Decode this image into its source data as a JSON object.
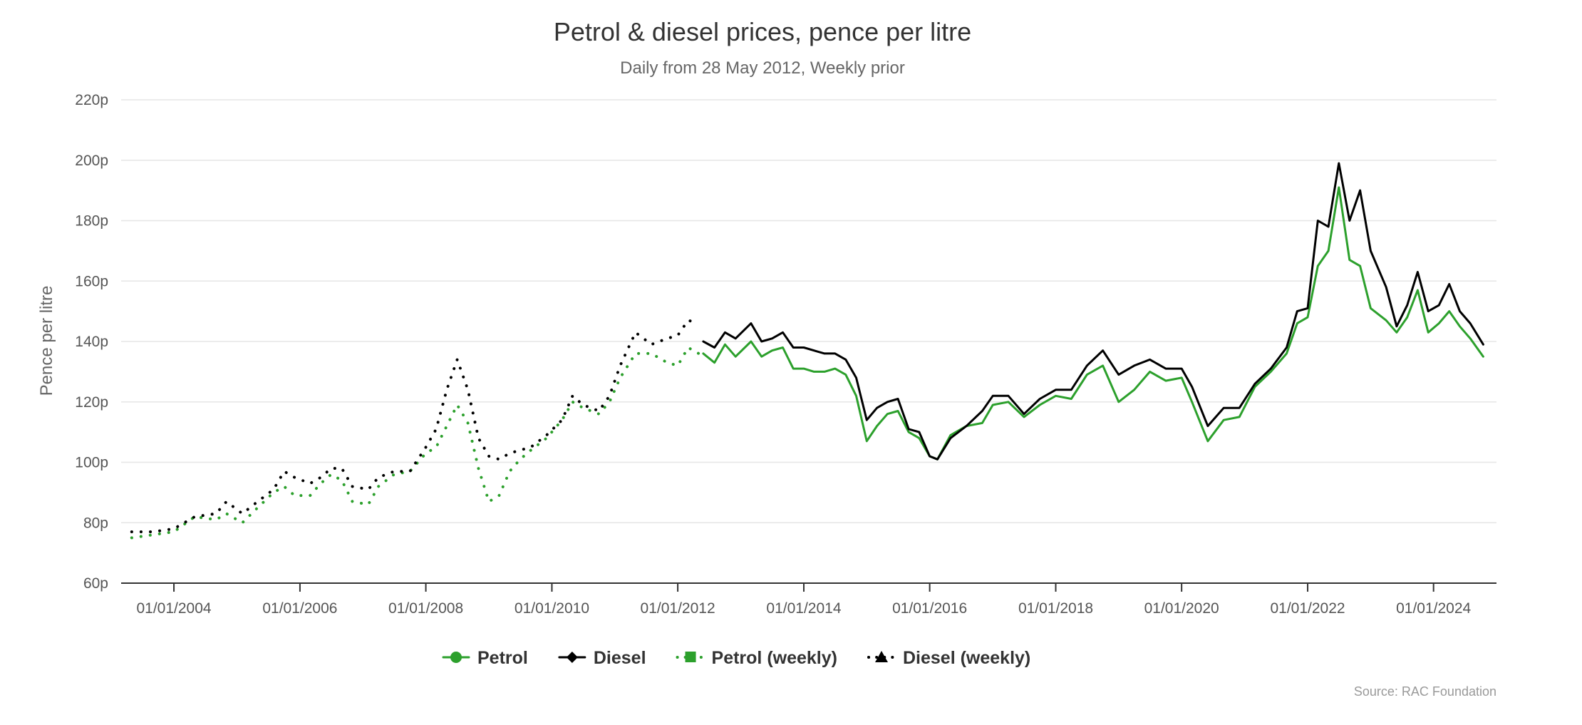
{
  "chart_data": {
    "type": "line",
    "title": "Petrol & diesel prices, pence per litre",
    "subtitle": "Daily from 28 May 2012, Weekly prior",
    "ylabel": "Pence per litre",
    "xlabel": "",
    "ylim": [
      60,
      220
    ],
    "y_ticks": [
      60,
      80,
      100,
      120,
      140,
      160,
      180,
      200,
      220
    ],
    "y_tick_labels": [
      "60p",
      "80p",
      "100p",
      "120p",
      "140p",
      "160p",
      "180p",
      "200p",
      "220p"
    ],
    "xlim": [
      "2003-03-01",
      "2024-12-31"
    ],
    "x_ticks": [
      "2004-01-01",
      "2006-01-01",
      "2008-01-01",
      "2010-01-01",
      "2012-01-01",
      "2014-01-01",
      "2016-01-01",
      "2018-01-01",
      "2020-01-01",
      "2022-01-01",
      "2024-01-01"
    ],
    "x_tick_labels": [
      "01/01/2004",
      "01/01/2006",
      "01/01/2008",
      "01/01/2010",
      "01/01/2012",
      "01/01/2014",
      "01/01/2016",
      "01/01/2018",
      "01/01/2020",
      "01/01/2022",
      "01/01/2024"
    ],
    "grid": true,
    "legend_position": "bottom",
    "source": "Source: RAC Foundation",
    "colors": {
      "petrol": "#2ca02c",
      "diesel": "#000000"
    },
    "series": [
      {
        "name": "Petrol (weekly)",
        "style": "dotted",
        "color": "#2ca02c",
        "points": [
          [
            "2003-05-01",
            75
          ],
          [
            "2003-09-01",
            76
          ],
          [
            "2004-01-01",
            77
          ],
          [
            "2004-05-01",
            82
          ],
          [
            "2004-09-01",
            81
          ],
          [
            "2004-11-01",
            83
          ],
          [
            "2005-02-01",
            80
          ],
          [
            "2005-05-01",
            85
          ],
          [
            "2005-08-01",
            90
          ],
          [
            "2005-10-01",
            92
          ],
          [
            "2005-12-01",
            89
          ],
          [
            "2006-03-01",
            89
          ],
          [
            "2006-05-01",
            93
          ],
          [
            "2006-07-01",
            96
          ],
          [
            "2006-09-01",
            94
          ],
          [
            "2006-11-01",
            87
          ],
          [
            "2007-02-01",
            86
          ],
          [
            "2007-04-01",
            92
          ],
          [
            "2007-07-01",
            96
          ],
          [
            "2007-10-01",
            97
          ],
          [
            "2008-01-01",
            103
          ],
          [
            "2008-03-01",
            105
          ],
          [
            "2008-05-01",
            112
          ],
          [
            "2008-07-01",
            119
          ],
          [
            "2008-09-01",
            113
          ],
          [
            "2008-11-01",
            98
          ],
          [
            "2009-01-01",
            87
          ],
          [
            "2009-03-01",
            89
          ],
          [
            "2009-05-01",
            97
          ],
          [
            "2009-07-01",
            101
          ],
          [
            "2009-09-01",
            104
          ],
          [
            "2009-12-01",
            108
          ],
          [
            "2010-03-01",
            114
          ],
          [
            "2010-05-01",
            120
          ],
          [
            "2010-07-01",
            118
          ],
          [
            "2010-10-01",
            116
          ],
          [
            "2010-12-01",
            120
          ],
          [
            "2011-02-01",
            128
          ],
          [
            "2011-05-01",
            136
          ],
          [
            "2011-08-01",
            136
          ],
          [
            "2011-11-01",
            133
          ],
          [
            "2012-01-01",
            132
          ],
          [
            "2012-03-01",
            138
          ],
          [
            "2012-05-01",
            136
          ]
        ]
      },
      {
        "name": "Diesel (weekly)",
        "style": "dotted",
        "color": "#000000",
        "points": [
          [
            "2003-05-01",
            77
          ],
          [
            "2003-09-01",
            77
          ],
          [
            "2004-01-01",
            78
          ],
          [
            "2004-05-01",
            82
          ],
          [
            "2004-09-01",
            83
          ],
          [
            "2004-11-01",
            87
          ],
          [
            "2005-02-01",
            83
          ],
          [
            "2005-05-01",
            87
          ],
          [
            "2005-08-01",
            91
          ],
          [
            "2005-10-01",
            97
          ],
          [
            "2005-12-01",
            95
          ],
          [
            "2006-03-01",
            93
          ],
          [
            "2006-05-01",
            95
          ],
          [
            "2006-07-01",
            98
          ],
          [
            "2006-09-01",
            98
          ],
          [
            "2006-11-01",
            92
          ],
          [
            "2007-02-01",
            91
          ],
          [
            "2007-04-01",
            95
          ],
          [
            "2007-07-01",
            97
          ],
          [
            "2007-10-01",
            97
          ],
          [
            "2008-01-01",
            105
          ],
          [
            "2008-03-01",
            111
          ],
          [
            "2008-05-01",
            124
          ],
          [
            "2008-07-01",
            134
          ],
          [
            "2008-09-01",
            124
          ],
          [
            "2008-11-01",
            108
          ],
          [
            "2009-01-01",
            102
          ],
          [
            "2009-03-01",
            101
          ],
          [
            "2009-05-01",
            103
          ],
          [
            "2009-07-01",
            104
          ],
          [
            "2009-09-01",
            105
          ],
          [
            "2009-12-01",
            109
          ],
          [
            "2010-03-01",
            114
          ],
          [
            "2010-05-01",
            122
          ],
          [
            "2010-07-01",
            119
          ],
          [
            "2010-10-01",
            117
          ],
          [
            "2010-12-01",
            122
          ],
          [
            "2011-02-01",
            132
          ],
          [
            "2011-05-01",
            143
          ],
          [
            "2011-08-01",
            139
          ],
          [
            "2011-11-01",
            141
          ],
          [
            "2012-01-01",
            142
          ],
          [
            "2012-03-01",
            147
          ],
          [
            "2012-05-01",
            146
          ]
        ]
      },
      {
        "name": "Petrol",
        "style": "solid",
        "color": "#2ca02c",
        "points": [
          [
            "2012-05-28",
            136
          ],
          [
            "2012-08-01",
            133
          ],
          [
            "2012-10-01",
            139
          ],
          [
            "2012-12-01",
            135
          ],
          [
            "2013-03-01",
            140
          ],
          [
            "2013-05-01",
            135
          ],
          [
            "2013-07-01",
            137
          ],
          [
            "2013-09-01",
            138
          ],
          [
            "2013-11-01",
            131
          ],
          [
            "2014-01-01",
            131
          ],
          [
            "2014-03-01",
            130
          ],
          [
            "2014-05-01",
            130
          ],
          [
            "2014-07-01",
            131
          ],
          [
            "2014-09-01",
            129
          ],
          [
            "2014-11-01",
            122
          ],
          [
            "2015-01-01",
            107
          ],
          [
            "2015-03-01",
            112
          ],
          [
            "2015-05-01",
            116
          ],
          [
            "2015-07-01",
            117
          ],
          [
            "2015-09-01",
            110
          ],
          [
            "2015-11-01",
            108
          ],
          [
            "2016-01-01",
            102
          ],
          [
            "2016-02-15",
            101
          ],
          [
            "2016-05-01",
            109
          ],
          [
            "2016-08-01",
            112
          ],
          [
            "2016-11-01",
            113
          ],
          [
            "2017-01-01",
            119
          ],
          [
            "2017-04-01",
            120
          ],
          [
            "2017-07-01",
            115
          ],
          [
            "2017-10-01",
            119
          ],
          [
            "2018-01-01",
            122
          ],
          [
            "2018-04-01",
            121
          ],
          [
            "2018-07-01",
            129
          ],
          [
            "2018-10-01",
            132
          ],
          [
            "2019-01-01",
            120
          ],
          [
            "2019-04-01",
            124
          ],
          [
            "2019-07-01",
            130
          ],
          [
            "2019-10-01",
            127
          ],
          [
            "2020-01-01",
            128
          ],
          [
            "2020-03-01",
            120
          ],
          [
            "2020-06-01",
            107
          ],
          [
            "2020-09-01",
            114
          ],
          [
            "2020-12-01",
            115
          ],
          [
            "2021-03-01",
            125
          ],
          [
            "2021-06-01",
            130
          ],
          [
            "2021-09-01",
            136
          ],
          [
            "2021-11-01",
            146
          ],
          [
            "2022-01-01",
            148
          ],
          [
            "2022-03-01",
            165
          ],
          [
            "2022-05-01",
            170
          ],
          [
            "2022-07-01",
            191
          ],
          [
            "2022-09-01",
            167
          ],
          [
            "2022-11-01",
            165
          ],
          [
            "2023-01-01",
            151
          ],
          [
            "2023-04-01",
            147
          ],
          [
            "2023-06-01",
            143
          ],
          [
            "2023-08-01",
            148
          ],
          [
            "2023-10-01",
            157
          ],
          [
            "2023-12-01",
            143
          ],
          [
            "2024-02-01",
            146
          ],
          [
            "2024-04-01",
            150
          ],
          [
            "2024-06-01",
            145
          ],
          [
            "2024-08-01",
            141
          ],
          [
            "2024-10-15",
            135
          ]
        ]
      },
      {
        "name": "Diesel",
        "style": "solid",
        "color": "#000000",
        "points": [
          [
            "2012-05-28",
            140
          ],
          [
            "2012-08-01",
            138
          ],
          [
            "2012-10-01",
            143
          ],
          [
            "2012-12-01",
            141
          ],
          [
            "2013-03-01",
            146
          ],
          [
            "2013-05-01",
            140
          ],
          [
            "2013-07-01",
            141
          ],
          [
            "2013-09-01",
            143
          ],
          [
            "2013-11-01",
            138
          ],
          [
            "2014-01-01",
            138
          ],
          [
            "2014-03-01",
            137
          ],
          [
            "2014-05-01",
            136
          ],
          [
            "2014-07-01",
            136
          ],
          [
            "2014-09-01",
            134
          ],
          [
            "2014-11-01",
            128
          ],
          [
            "2015-01-01",
            114
          ],
          [
            "2015-03-01",
            118
          ],
          [
            "2015-05-01",
            120
          ],
          [
            "2015-07-01",
            121
          ],
          [
            "2015-09-01",
            111
          ],
          [
            "2015-11-01",
            110
          ],
          [
            "2016-01-01",
            102
          ],
          [
            "2016-02-15",
            101
          ],
          [
            "2016-05-01",
            108
          ],
          [
            "2016-08-01",
            112
          ],
          [
            "2016-11-01",
            117
          ],
          [
            "2017-01-01",
            122
          ],
          [
            "2017-04-01",
            122
          ],
          [
            "2017-07-01",
            116
          ],
          [
            "2017-10-01",
            121
          ],
          [
            "2018-01-01",
            124
          ],
          [
            "2018-04-01",
            124
          ],
          [
            "2018-07-01",
            132
          ],
          [
            "2018-10-01",
            137
          ],
          [
            "2019-01-01",
            129
          ],
          [
            "2019-04-01",
            132
          ],
          [
            "2019-07-01",
            134
          ],
          [
            "2019-10-01",
            131
          ],
          [
            "2020-01-01",
            131
          ],
          [
            "2020-03-01",
            125
          ],
          [
            "2020-06-01",
            112
          ],
          [
            "2020-09-01",
            118
          ],
          [
            "2020-12-01",
            118
          ],
          [
            "2021-03-01",
            126
          ],
          [
            "2021-06-01",
            131
          ],
          [
            "2021-09-01",
            138
          ],
          [
            "2021-11-01",
            150
          ],
          [
            "2022-01-01",
            151
          ],
          [
            "2022-03-01",
            180
          ],
          [
            "2022-05-01",
            178
          ],
          [
            "2022-07-01",
            199
          ],
          [
            "2022-09-01",
            180
          ],
          [
            "2022-11-01",
            190
          ],
          [
            "2023-01-01",
            170
          ],
          [
            "2023-04-01",
            158
          ],
          [
            "2023-06-01",
            145
          ],
          [
            "2023-08-01",
            152
          ],
          [
            "2023-10-01",
            163
          ],
          [
            "2023-12-01",
            150
          ],
          [
            "2024-02-01",
            152
          ],
          [
            "2024-04-01",
            159
          ],
          [
            "2024-06-01",
            150
          ],
          [
            "2024-08-01",
            146
          ],
          [
            "2024-10-15",
            139
          ]
        ]
      }
    ],
    "legend": [
      {
        "label": "Petrol",
        "marker": "circle",
        "line": "solid",
        "color": "#2ca02c"
      },
      {
        "label": "Diesel",
        "marker": "diamond",
        "line": "solid",
        "color": "#000000"
      },
      {
        "label": "Petrol (weekly)",
        "marker": "square",
        "line": "dotted",
        "color": "#2ca02c"
      },
      {
        "label": "Diesel (weekly)",
        "marker": "triangle",
        "line": "dotted",
        "color": "#000000"
      }
    ]
  }
}
